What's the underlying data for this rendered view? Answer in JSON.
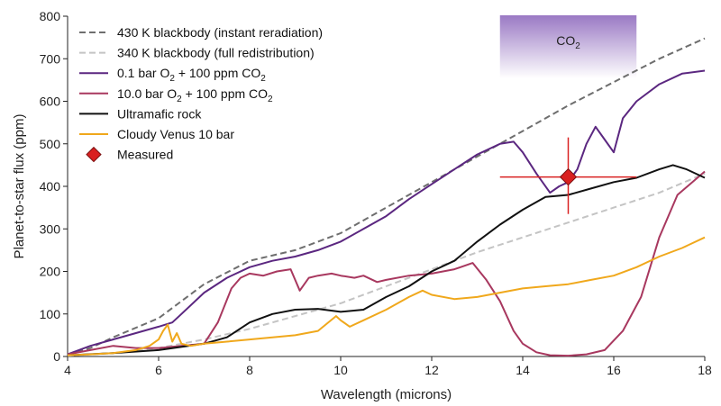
{
  "chart_data": {
    "type": "line",
    "xlabel": "Wavelength (microns)",
    "ylabel": "Planet-to-star flux (ppm)",
    "xlim": [
      4,
      18
    ],
    "ylim": [
      0,
      800
    ],
    "xticks": [
      "4",
      "6",
      "8",
      "10",
      "12",
      "14",
      "16",
      "18"
    ],
    "yticks": [
      "0",
      "100",
      "200",
      "300",
      "400",
      "500",
      "600",
      "700",
      "800"
    ],
    "band": {
      "label": "CO",
      "label_sub": "2",
      "x_range": [
        13.5,
        16.5
      ],
      "color": "#9a79c4"
    },
    "legend_position": "top-left",
    "series": [
      {
        "name": "430 K blackbody (instant reradiation)",
        "color": "#6e6e6e",
        "style": "dashed",
        "x": [
          4,
          4.5,
          5,
          6,
          7,
          8,
          9,
          10,
          11,
          12,
          13,
          14,
          15,
          16,
          17,
          18
        ],
        "y": [
          3,
          20,
          45,
          90,
          170,
          225,
          250,
          290,
          350,
          410,
          470,
          530,
          590,
          645,
          700,
          748
        ]
      },
      {
        "name": "340 K blackbody (full redistribution)",
        "color": "#c4c4c4",
        "style": "dashed",
        "x": [
          4,
          5,
          6,
          7,
          8,
          9,
          10,
          11,
          12,
          13,
          14,
          15,
          16,
          17,
          18
        ],
        "y": [
          2,
          8,
          20,
          40,
          65,
          95,
          125,
          165,
          205,
          245,
          280,
          315,
          350,
          385,
          430
        ]
      },
      {
        "name": "0.1 bar O2 + 100 ppm CO2",
        "label_parts": [
          "0.1 bar O",
          "2",
          " + 100 ppm CO",
          "2"
        ],
        "color": "#5b2780",
        "style": "solid",
        "x": [
          4,
          4.5,
          5,
          5.5,
          6,
          6.3,
          6.5,
          7,
          7.5,
          8,
          8.5,
          9,
          9.5,
          10,
          10.5,
          11,
          11.5,
          12,
          12.5,
          13,
          13.5,
          13.8,
          14,
          14.3,
          14.6,
          14.8,
          15,
          15.2,
          15.4,
          15.6,
          15.8,
          16,
          16.2,
          16.5,
          17,
          17.5,
          18
        ],
        "y": [
          5,
          25,
          40,
          55,
          70,
          80,
          100,
          150,
          185,
          210,
          225,
          235,
          250,
          270,
          300,
          330,
          370,
          405,
          440,
          475,
          500,
          505,
          480,
          430,
          385,
          400,
          410,
          440,
          500,
          540,
          510,
          480,
          560,
          600,
          640,
          665,
          672
        ]
      },
      {
        "name": "10.0 bar O2 + 100 ppm CO2",
        "label_parts": [
          "10.0 bar O",
          "2",
          " + 100 ppm CO",
          "2"
        ],
        "color": "#a8385f",
        "style": "solid",
        "x": [
          4,
          4.5,
          5,
          5.5,
          6,
          6.5,
          7,
          7.3,
          7.6,
          7.8,
          8,
          8.3,
          8.6,
          8.9,
          9.1,
          9.3,
          9.5,
          9.8,
          10,
          10.3,
          10.5,
          10.8,
          11,
          11.5,
          12,
          12.5,
          12.9,
          13.2,
          13.5,
          13.8,
          14,
          14.3,
          14.6,
          15,
          15.4,
          15.8,
          16.2,
          16.6,
          17,
          17.4,
          18
        ],
        "y": [
          5,
          15,
          25,
          20,
          20,
          25,
          30,
          80,
          160,
          185,
          195,
          190,
          200,
          205,
          155,
          185,
          190,
          195,
          190,
          185,
          190,
          175,
          180,
          190,
          195,
          205,
          220,
          180,
          130,
          60,
          30,
          10,
          3,
          2,
          5,
          15,
          60,
          140,
          280,
          380,
          435
        ]
      },
      {
        "name": "Ultramafic rock",
        "color": "#111111",
        "style": "solid",
        "x": [
          4,
          5,
          6,
          7,
          7.5,
          8,
          8.5,
          9,
          9.5,
          10,
          10.5,
          11,
          11.5,
          12,
          12.5,
          13,
          13.5,
          14,
          14.5,
          15,
          15.5,
          16,
          16.5,
          17,
          17.3,
          17.6,
          18
        ],
        "y": [
          3,
          8,
          15,
          30,
          45,
          80,
          100,
          110,
          112,
          105,
          110,
          140,
          165,
          200,
          225,
          270,
          310,
          345,
          375,
          380,
          395,
          410,
          420,
          440,
          450,
          440,
          420
        ]
      },
      {
        "name": "Cloudy Venus 10 bar",
        "color": "#f0a81c",
        "style": "solid",
        "x": [
          4,
          4.5,
          5,
          5.5,
          5.8,
          6,
          6.1,
          6.2,
          6.3,
          6.4,
          6.5,
          6.7,
          7,
          7.5,
          8,
          8.5,
          9,
          9.5,
          9.9,
          10,
          10.2,
          10.5,
          11,
          11.5,
          11.8,
          12,
          12.5,
          13,
          13.5,
          14,
          14.5,
          15,
          15.5,
          16,
          16.5,
          17,
          17.5,
          18
        ],
        "y": [
          3,
          5,
          8,
          15,
          25,
          40,
          60,
          75,
          35,
          55,
          30,
          25,
          30,
          35,
          40,
          45,
          50,
          60,
          95,
          85,
          70,
          85,
          110,
          140,
          155,
          145,
          135,
          140,
          150,
          160,
          165,
          170,
          180,
          190,
          210,
          235,
          255,
          280
        ]
      }
    ],
    "measured": {
      "name": "Measured",
      "color": "#d92020",
      "x": 15.0,
      "y": 422,
      "x_err": [
        13.5,
        16.5
      ],
      "y_err": [
        335,
        515
      ]
    }
  }
}
